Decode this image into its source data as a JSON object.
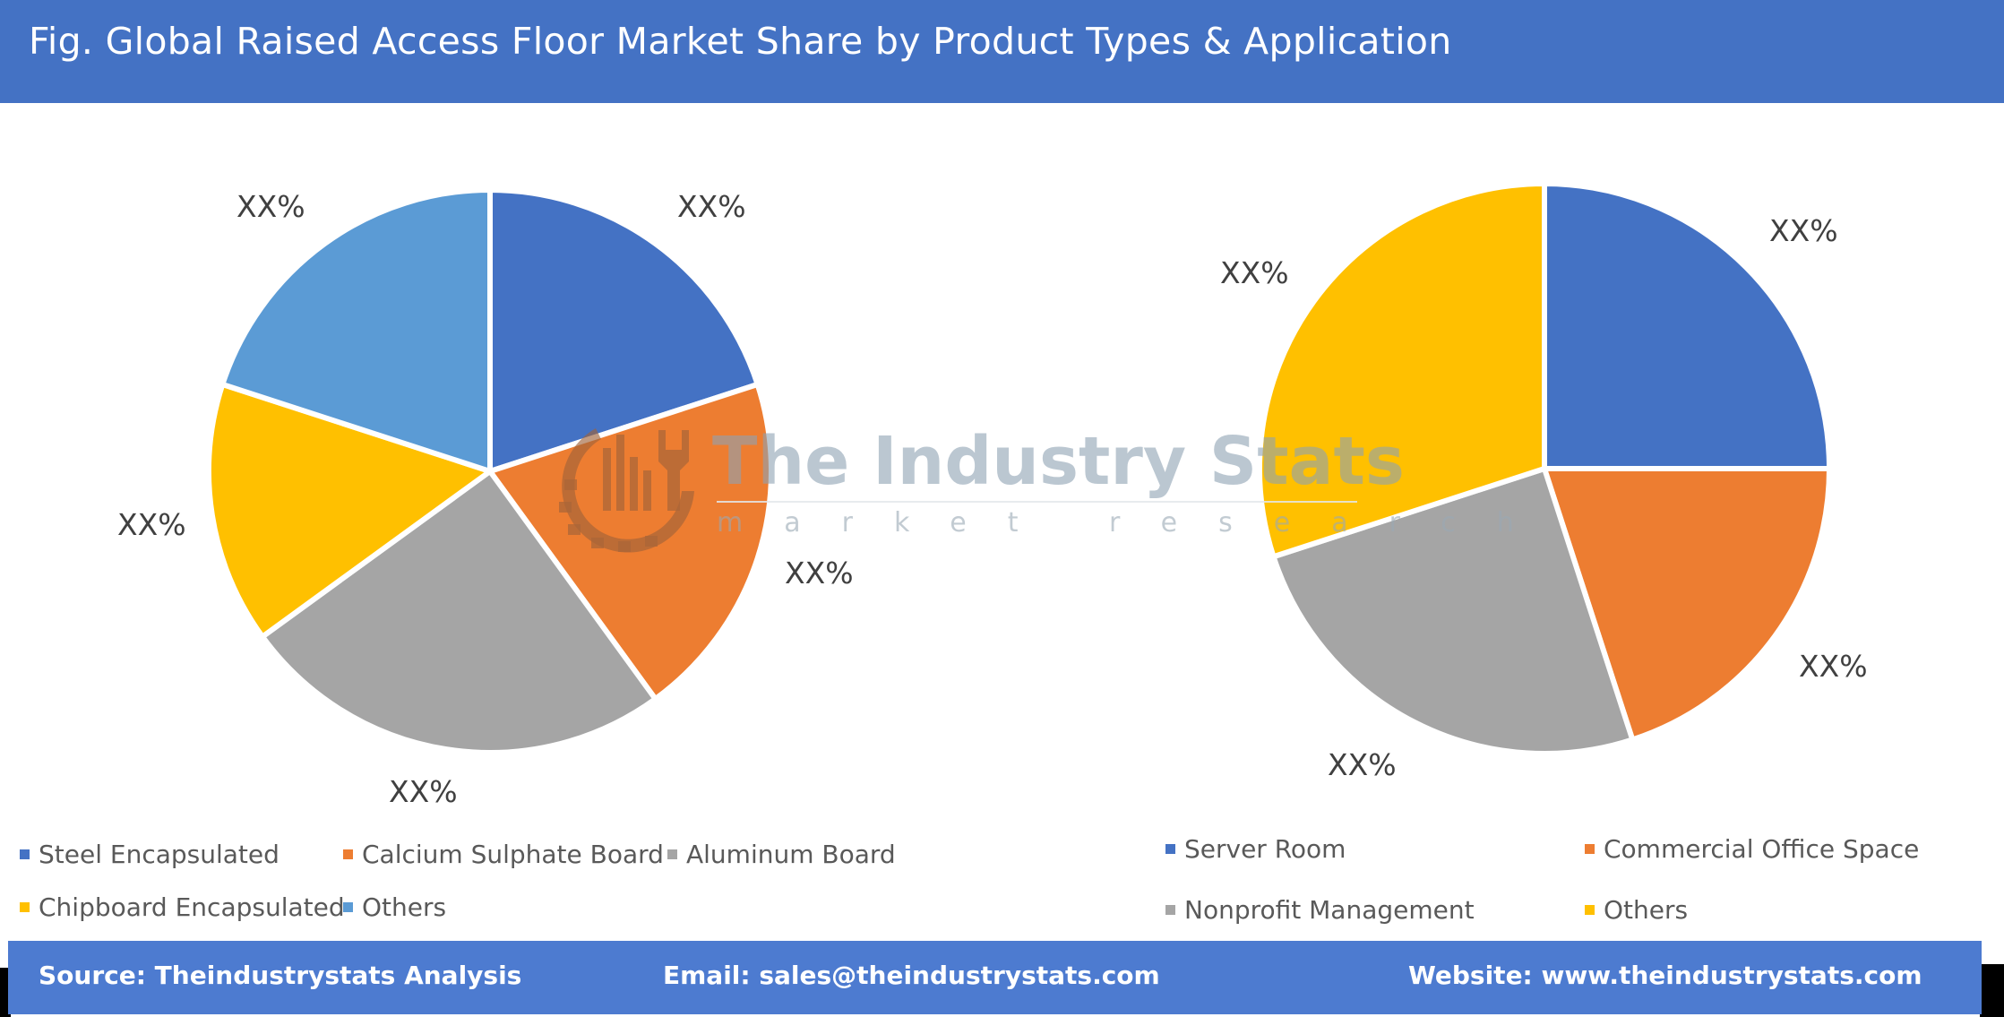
{
  "header": {
    "title": "Fig. Global Raised Access Floor Market Share by Product Types & Application"
  },
  "watermark": {
    "title": "The Industry Stats",
    "subtitle": "market research"
  },
  "colors": {
    "header_bg": "#4472c4",
    "footer_bg": "#4d7bd0",
    "blue": "#4472c4",
    "orange": "#ed7d31",
    "gray": "#a5a5a5",
    "yellow": "#ffc000",
    "light_blue": "#5b9bd5"
  },
  "chart_data": [
    {
      "type": "pie",
      "title": "Product Types",
      "categories": [
        "Steel Encapsulated",
        "Calcium Sulphate Board",
        "Aluminum Board",
        "Chipboard Encapsulated",
        "Others"
      ],
      "values": [
        20,
        20,
        25,
        15,
        20
      ],
      "data_labels": [
        "XX%",
        "XX%",
        "XX%",
        "XX%",
        "XX%"
      ],
      "colors": [
        "#4472c4",
        "#ed7d31",
        "#a5a5a5",
        "#ffc000",
        "#5b9bd5"
      ],
      "legend_position": "bottom"
    },
    {
      "type": "pie",
      "title": "Application",
      "categories": [
        "Server Room",
        "Commercial Office Space",
        "Nonprofit Management",
        "Others"
      ],
      "values": [
        25,
        20,
        25,
        30
      ],
      "data_labels": [
        "XX%",
        "XX%",
        "XX%",
        "XX%"
      ],
      "colors": [
        "#4472c4",
        "#ed7d31",
        "#a5a5a5",
        "#ffc000"
      ],
      "legend_position": "bottom"
    }
  ],
  "legend_left": [
    {
      "label": "Steel Encapsulated",
      "color": "#4472c4"
    },
    {
      "label": "Calcium Sulphate Board",
      "color": "#ed7d31"
    },
    {
      "label": "Aluminum Board",
      "color": "#a5a5a5"
    },
    {
      "label": "Chipboard Encapsulated",
      "color": "#ffc000"
    },
    {
      "label": "Others",
      "color": "#5b9bd5"
    }
  ],
  "legend_right": [
    {
      "label": "Server Room",
      "color": "#4472c4"
    },
    {
      "label": "Commercial Office Space",
      "color": "#ed7d31"
    },
    {
      "label": "Nonprofit Management",
      "color": "#a5a5a5"
    },
    {
      "label": "Others",
      "color": "#ffc000"
    }
  ],
  "footer": {
    "source": "Source: Theindustrystats Analysis",
    "email": "Email: sales@theindustrystats.com",
    "website": "Website: www.theindustrystats.com"
  }
}
